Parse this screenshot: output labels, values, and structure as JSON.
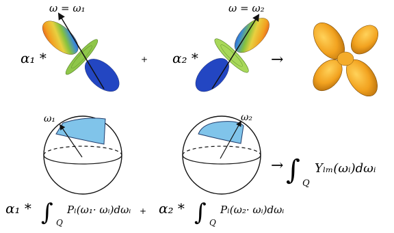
{
  "top_row": {
    "lobe1": {
      "axis_label": "ω = ω₁",
      "coefficient": "α₁ *"
    },
    "plus": "+",
    "lobe2": {
      "axis_label": "ω = ω₂",
      "coefficient": "α₂ *"
    },
    "arrow": "→"
  },
  "bottom_row": {
    "sphere1": {
      "direction_label": "ω₁"
    },
    "sphere2": {
      "direction_label": "ω₂"
    },
    "result": {
      "arrow": "→",
      "integral_sign": "∫",
      "subscript": "Q",
      "integrand": "Yₗₘ(ωᵢ)dωᵢ"
    },
    "term1": {
      "coefficient": "α₁ *",
      "integral_sign": "∫",
      "subscript": "Q",
      "integrand": "Pₗ(ω₁· ωᵢ)dωᵢ"
    },
    "plus": "+",
    "term2": {
      "coefficient": "α₂ *",
      "integral_sign": "∫",
      "subscript": "Q",
      "integrand": "Pₗ(ω₂· ωᵢ)dωᵢ"
    }
  },
  "colors": {
    "cap_fill": "#80c4ea",
    "result_lobe": "#f2a21f",
    "lobe_red": "#e0281e",
    "lobe_yellow": "#e8d040",
    "lobe_green": "#86c23e",
    "lobe_blue": "#1f3fbf"
  }
}
